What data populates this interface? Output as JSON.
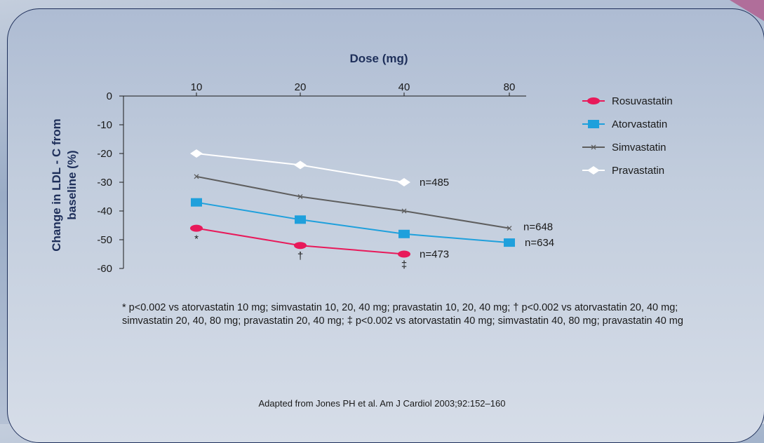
{
  "chart_data": {
    "type": "line",
    "title": "",
    "xlabel": "Dose (mg)",
    "ylabel": "Change in LDL - C from baseline (%)",
    "x": [
      "10",
      "20",
      "40",
      "80"
    ],
    "yticks": [
      "0",
      "-10",
      "-20",
      "-30",
      "-40",
      "-50",
      "-60"
    ],
    "ylim": [
      -60,
      0
    ],
    "grid": false,
    "legend_position": "right",
    "series": [
      {
        "name": "Rosuvastatin",
        "color": "#e8195a",
        "marker": "ellipse",
        "values": [
          -46,
          -52,
          -55,
          null
        ]
      },
      {
        "name": "Atorvastatin",
        "color": "#1fa0dc",
        "marker": "square",
        "values": [
          -37,
          -43,
          -48,
          -51
        ]
      },
      {
        "name": "Simvastatin",
        "color": "#5e5e5e",
        "marker": "x",
        "values": [
          -28,
          -35,
          -40,
          -46
        ]
      },
      {
        "name": "Pravastatin",
        "color": "#ffffff",
        "marker": "diamond",
        "values": [
          -20,
          -24,
          -30,
          null
        ]
      }
    ],
    "annotations": [
      {
        "text": "n=485",
        "series": "Pravastatin"
      },
      {
        "text": "n=648",
        "series": "Simvastatin"
      },
      {
        "text": "n=634",
        "series": "Atorvastatin"
      },
      {
        "text": "n=473",
        "series": "Rosuvastatin"
      },
      {
        "text": "*",
        "series": "Rosuvastatin",
        "dose": "10"
      },
      {
        "text": "†",
        "series": "Rosuvastatin",
        "dose": "20"
      },
      {
        "text": "‡",
        "series": "Rosuvastatin",
        "dose": "40"
      }
    ]
  },
  "footnote": "* p<0.002 vs atorvastatin 10 mg; simvastatin 10, 20, 40 mg; pravastatin 10, 20, 40 mg; † p<0.002 vs atorvastatin 20, 40 mg; simvastatin 20, 40, 80 mg; pravastatin 20, 40 mg; ‡ p<0.002 vs atorvastatin 40 mg; simvastatin 40, 80 mg; pravastatin 40 mg",
  "citation": "Adapted from Jones PH et al. Am J Cardiol 2003;92:152–160"
}
